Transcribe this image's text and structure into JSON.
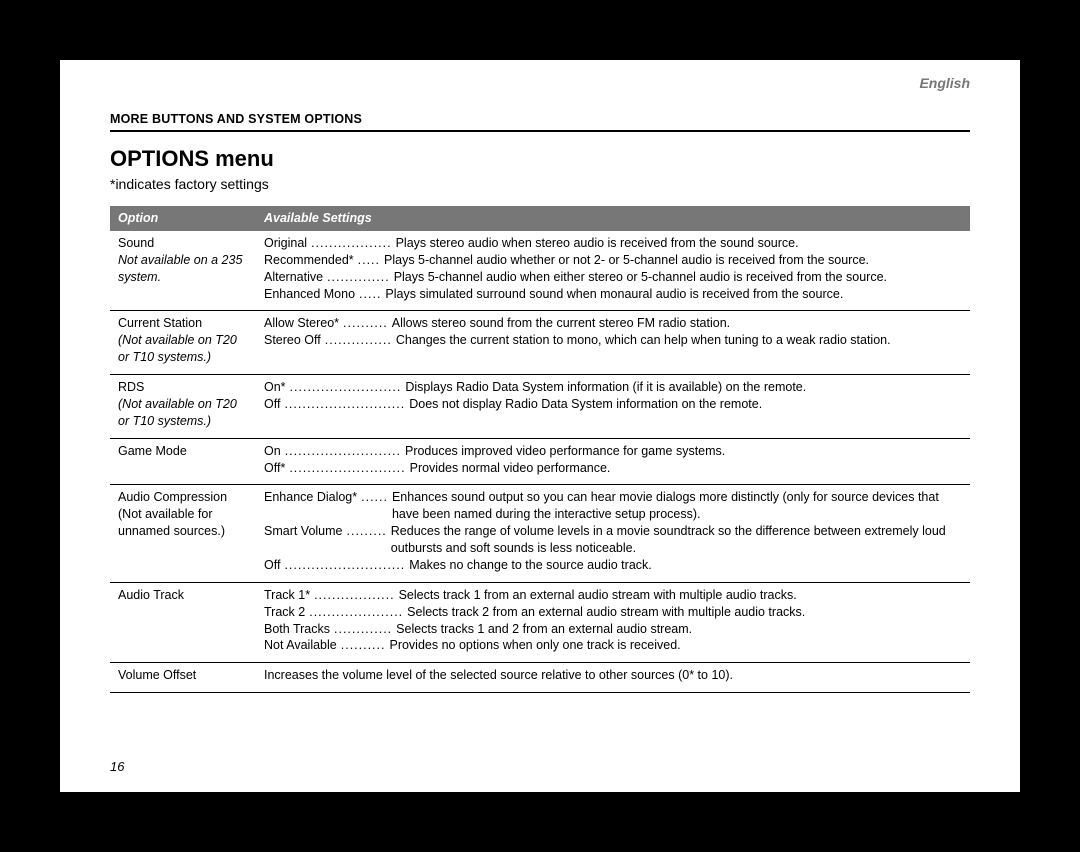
{
  "language": "English",
  "section_header_1": "MORE ",
  "section_header_2": "BUTTONS AND SYSTEM OPTIONS",
  "title": "OPTIONS menu",
  "subtitle": "*indicates factory settings",
  "columns": {
    "option": "Option",
    "settings": "Available Settings"
  },
  "rows": [
    {
      "option": "Sound",
      "note": "Not available on a 235 system.",
      "settings": [
        {
          "label": "Original",
          "dots": "..................",
          "desc": "Plays stereo audio when stereo audio is received from the sound source."
        },
        {
          "label": "Recommended*",
          "dots": ".....",
          "desc": "Plays 5-channel audio whether or not 2- or 5-channel audio is received from the source."
        },
        {
          "label": "Alternative",
          "dots": "..............",
          "desc": "Plays 5-channel audio when either stereo or 5-channel audio is received from the source."
        },
        {
          "label": "Enhanced Mono",
          "dots": ".....",
          "desc": "Plays simulated surround sound when monaural audio is received from the source."
        }
      ]
    },
    {
      "option": "Current Station",
      "note": "(Not available on T20 or T10 systems.)",
      "settings": [
        {
          "label": "Allow Stereo*",
          "dots": "..........",
          "desc": "Allows stereo sound from the current stereo FM radio station."
        },
        {
          "label": "Stereo Off",
          "dots": "...............",
          "desc": "Changes the current station to mono, which can help when tuning to a weak radio station."
        }
      ]
    },
    {
      "option": "RDS",
      "note": "(Not available on T20 or T10 systems.)",
      "settings": [
        {
          "label": "On*",
          "dots": ".........................",
          "desc": "Displays Radio Data System information (if it is available) on the remote."
        },
        {
          "label": "Off",
          "dots": "...........................",
          "desc": "Does not display Radio Data System information on the remote."
        }
      ]
    },
    {
      "option": "Game Mode",
      "note": "",
      "settings": [
        {
          "label": "On",
          "dots": "..........................",
          "desc": "Produces improved video performance for game systems."
        },
        {
          "label": "Off*",
          "dots": "..........................",
          "desc": "Provides normal video performance."
        }
      ]
    },
    {
      "option": "Audio Compression",
      "note": "(Not available for unnamed sources.)",
      "note_italic": false,
      "settings": [
        {
          "label": "Enhance Dialog*",
          "dots": "......",
          "desc": "Enhances sound output so you can hear movie dialogs more distinctly (only for source devices that have been named during the interactive setup process)."
        },
        {
          "label": "Smart Volume",
          "dots": ".........",
          "desc": "Reduces the range of volume levels in a movie soundtrack so the difference between extremely loud outbursts and soft sounds is less noticeable."
        },
        {
          "label": "Off",
          "dots": "...........................",
          "desc": "Makes no change to the source audio track."
        }
      ]
    },
    {
      "option": "Audio Track",
      "note": "",
      "settings": [
        {
          "label": "Track 1*",
          "dots": "..................",
          "desc": "Selects track 1 from an external audio stream with multiple audio tracks."
        },
        {
          "label": "Track 2",
          "dots": ".....................",
          "desc": "Selects track 2 from an external audio stream with multiple audio tracks."
        },
        {
          "label": "Both Tracks",
          "dots": ".............",
          "desc": "Selects tracks 1 and 2 from an external audio stream."
        },
        {
          "label": "Not Available",
          "dots": "..........",
          "desc": "Provides no options when only one track is received."
        }
      ]
    },
    {
      "option": "Volume Offset",
      "note": "",
      "plain": "Increases the volume level of the selected source relative to other sources (0* to 10)."
    }
  ],
  "page_number": "16"
}
